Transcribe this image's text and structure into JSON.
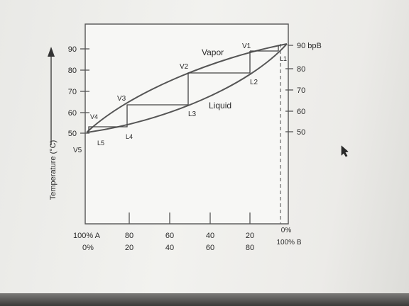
{
  "diagram": {
    "y_axis_title": "Temperature (°C)",
    "left_ticks": [
      "90",
      "80",
      "70",
      "60",
      "50"
    ],
    "right_ticks": [
      "80",
      "70",
      "60",
      "50"
    ],
    "bp_label": "90  bpB",
    "region_vapor": "Vapor",
    "region_liquid": "Liquid",
    "points": {
      "v1": "V1",
      "v2": "V2",
      "v3": "V3",
      "v4": "V4",
      "v5": "V5",
      "l1": "L1",
      "l2": "L2",
      "l3": "L3",
      "l4": "L4",
      "l5": "L5"
    },
    "composition_a": [
      "100% A",
      "80",
      "60",
      "40",
      "20",
      "0%"
    ],
    "composition_b": [
      "0%",
      "20",
      "40",
      "60",
      "80",
      "100% B"
    ]
  }
}
